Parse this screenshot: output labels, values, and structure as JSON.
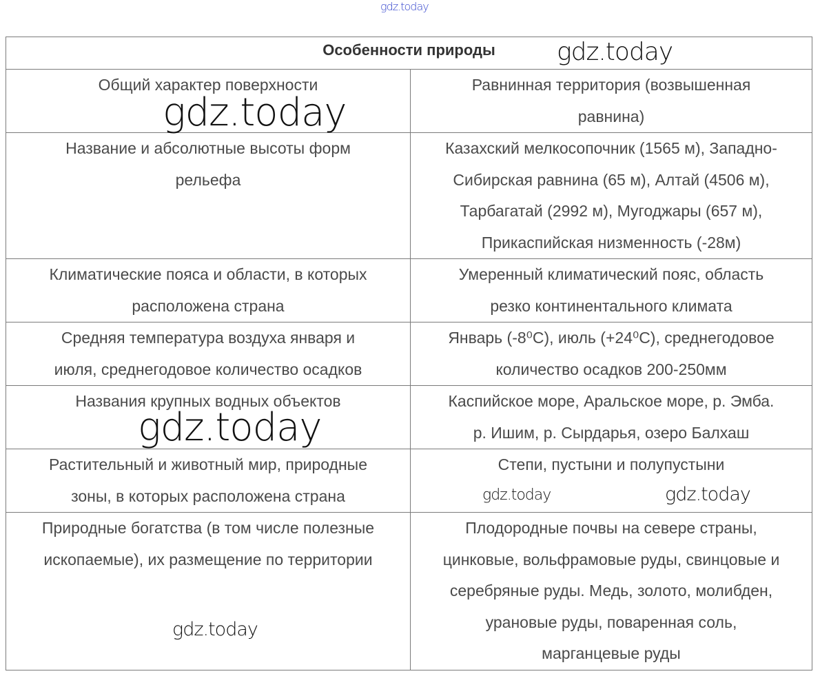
{
  "watermark": "gdz.today",
  "table": {
    "title": "Особенности природы",
    "rows": [
      {
        "left": [
          "Общий характер поверхности"
        ],
        "right": [
          "Равнинная территория (возвышенная",
          "равнина)"
        ]
      },
      {
        "left": [
          "Название и абсолютные высоты форм",
          "рельефа"
        ],
        "right": [
          "Казахский мелкосопочник (1565 м), Западно-",
          "Сибирская равнина (65 м), Алтай (4506 м),",
          "Тарбагатай (2992 м), Мугоджары (657 м),",
          "Прикаспийская низменность (-28м)"
        ]
      },
      {
        "left": [
          "Климатические пояса и области, в которых",
          "расположена страна"
        ],
        "right": [
          "Умеренный климатический пояс, область",
          "резко континентального климата"
        ]
      },
      {
        "left": [
          "Средняя температура воздуха января и",
          "июля, среднегодовое количество осадков"
        ],
        "right": [
          "Январь (-8⁰С), июль (+24⁰С), среднегодовое",
          "количество осадков 200-250мм"
        ]
      },
      {
        "left": [
          "Названия крупных водных объектов"
        ],
        "right": [
          "Каспийское море, Аральское море, р. Эмба.",
          "р. Ишим, р. Сырдарья, озеро Балхаш"
        ]
      },
      {
        "left": [
          "Растительный и животный мир, природные",
          "зоны, в которых расположена страна"
        ],
        "right": [
          "Степи, пустыни и полупустыни"
        ]
      },
      {
        "left": [
          "Природные богатства (в том числе полезные",
          "ископаемые), их размещение по территории"
        ],
        "right": [
          "Плодородные почвы на севере страны,",
          "цинковые, вольфрамовые руды, свинцовые и",
          "серебряные руды. Медь, золото, молибден,",
          "урановые руды, поваренная соль,",
          "марганцевые руды"
        ]
      }
    ]
  }
}
